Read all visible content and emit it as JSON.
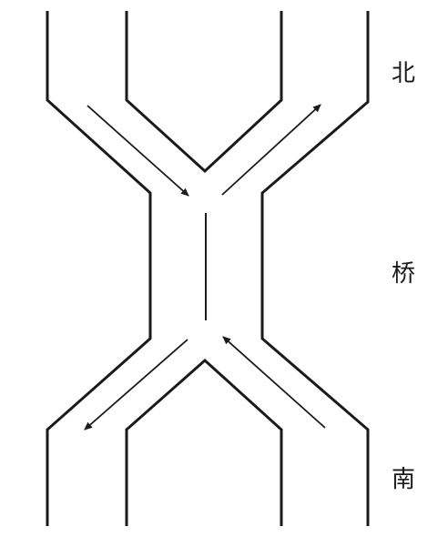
{
  "labels": {
    "north": "北",
    "bridge": "桥",
    "south": "南"
  },
  "colors": {
    "line": "#1a1a1a",
    "background": "#ffffff"
  }
}
